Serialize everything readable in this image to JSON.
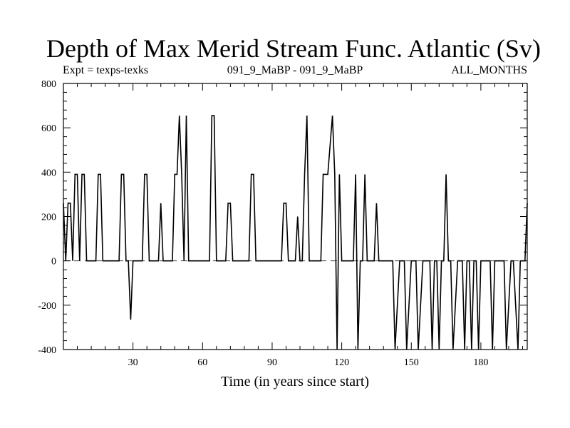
{
  "chart_data": {
    "type": "line",
    "title": "Depth of Max Merid Stream Func. Atlantic (Sv)",
    "subtitle_left": "Expt = texps-texks",
    "subtitle_center": "091_9_MaBP - 091_9_MaBP",
    "subtitle_right": "ALL_MONTHS",
    "xlabel": "Time (in years since start)",
    "ylabel": "",
    "xlim": [
      0,
      200
    ],
    "ylim": [
      -400,
      800
    ],
    "xticks": [
      30,
      60,
      90,
      120,
      150,
      180
    ],
    "yticks": [
      -400,
      -200,
      0,
      200,
      400,
      600,
      800
    ],
    "zero_line": "dashed",
    "series": [
      {
        "color": "#000000",
        "x": [
          0,
          1,
          2,
          3,
          4,
          5,
          6,
          7,
          8,
          9,
          10,
          11,
          14,
          15,
          16,
          17,
          24,
          25,
          26,
          27,
          28,
          29,
          30,
          34,
          35,
          36,
          37,
          41,
          42,
          43,
          47,
          48,
          49,
          50,
          51,
          52,
          53,
          54,
          63,
          64,
          65,
          66,
          70,
          71,
          72,
          73,
          80,
          81,
          82,
          83,
          94,
          95,
          96,
          97,
          100,
          101,
          102,
          103,
          104,
          105,
          106,
          107,
          111,
          112,
          113,
          114,
          116,
          117,
          118,
          119,
          120,
          121,
          122,
          125,
          126,
          127,
          128,
          129,
          130,
          131,
          132,
          134,
          135,
          136,
          142,
          143,
          145,
          147,
          148,
          150,
          152,
          153,
          155,
          158,
          159,
          160,
          161,
          162,
          163,
          164,
          165,
          166,
          167,
          168,
          170,
          172,
          173,
          174,
          175,
          176,
          177,
          178,
          179,
          180,
          181,
          184,
          185,
          186,
          188,
          190,
          191,
          193,
          194,
          196,
          197,
          198,
          199,
          200
        ],
        "y": [
          260,
          0,
          260,
          260,
          0,
          390,
          390,
          0,
          390,
          390,
          0,
          0,
          0,
          390,
          390,
          0,
          0,
          390,
          390,
          0,
          0,
          -265,
          0,
          0,
          390,
          390,
          0,
          0,
          260,
          0,
          0,
          390,
          390,
          655,
          390,
          0,
          655,
          0,
          0,
          655,
          655,
          0,
          0,
          260,
          260,
          0,
          0,
          390,
          390,
          0,
          0,
          260,
          260,
          0,
          0,
          200,
          0,
          0,
          390,
          655,
          0,
          0,
          0,
          390,
          390,
          390,
          655,
          390,
          -400,
          390,
          0,
          0,
          0,
          0,
          390,
          -400,
          0,
          0,
          390,
          0,
          0,
          0,
          260,
          0,
          0,
          -400,
          0,
          0,
          -400,
          0,
          0,
          -400,
          0,
          0,
          -400,
          0,
          0,
          -400,
          0,
          0,
          390,
          0,
          0,
          -400,
          0,
          0,
          -400,
          0,
          0,
          -400,
          0,
          0,
          -400,
          0,
          0,
          0,
          -400,
          0,
          0,
          0,
          -400,
          0,
          0,
          -400,
          0,
          0,
          0,
          260
        ]
      }
    ]
  }
}
